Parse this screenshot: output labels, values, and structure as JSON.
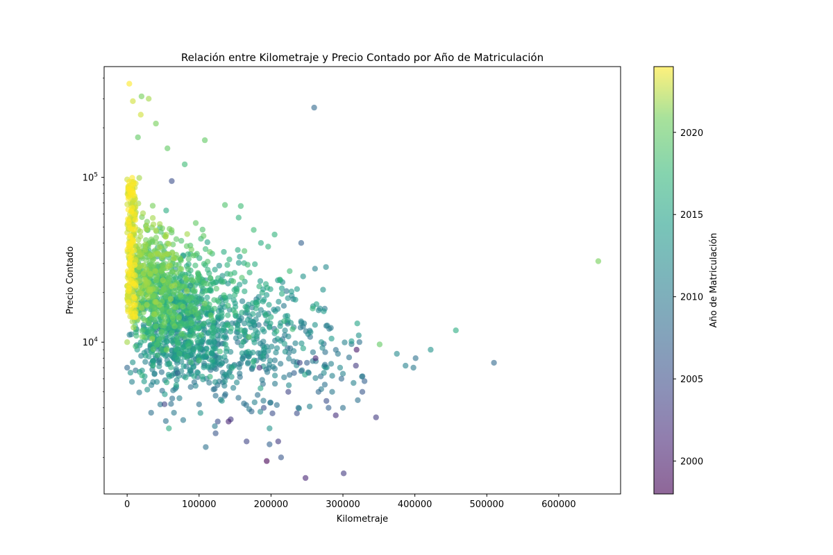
{
  "chart_data": {
    "type": "scatter",
    "title": "Relación entre Kilometraje y Precio Contado por Año de Matriculación",
    "xlabel": "Kilometraje",
    "ylabel": "Precio Contado",
    "yscale": "log",
    "xlim": [
      -32000,
      686000
    ],
    "ylim": [
      1200,
      470000
    ],
    "xticks": [
      0,
      100000,
      200000,
      300000,
      400000,
      500000,
      600000
    ],
    "yticks": [
      {
        "value": 10000,
        "base": "10",
        "exp": "4"
      },
      {
        "value": 100000,
        "base": "10",
        "exp": "5"
      }
    ],
    "grid": false,
    "colorbar": {
      "label": "Año de Matriculación",
      "colormap": "viridis",
      "alpha": 0.6,
      "min": 1998,
      "max": 2024,
      "ticks": [
        2000,
        2005,
        2010,
        2015,
        2020
      ]
    },
    "density_note_hidden": false,
    "points": [
      [
        655000,
        31000,
        2021
      ],
      [
        510000,
        7500,
        2008
      ],
      [
        457000,
        11800,
        2016
      ],
      [
        422000,
        9000,
        2013
      ],
      [
        401000,
        8000,
        2009
      ],
      [
        398000,
        7000,
        2010
      ],
      [
        387000,
        7200,
        2011
      ],
      [
        375000,
        8500,
        2012
      ],
      [
        351000,
        9700,
        2020
      ],
      [
        346000,
        3500,
        2003
      ],
      [
        330000,
        5800,
        2007
      ],
      [
        327000,
        5000,
        2006
      ],
      [
        322000,
        11000,
        2013
      ],
      [
        320000,
        13000,
        2015
      ],
      [
        319000,
        9000,
        2000
      ],
      [
        318000,
        7200,
        2003
      ],
      [
        301000,
        1600,
        2003
      ],
      [
        300000,
        4000,
        2009
      ],
      [
        298000,
        6000,
        2008
      ],
      [
        296000,
        7000,
        2012
      ],
      [
        293000,
        8500,
        2010
      ],
      [
        290000,
        3600,
        2002
      ],
      [
        285000,
        5000,
        2010
      ],
      [
        280000,
        4000,
        2007
      ],
      [
        277000,
        4400,
        2005
      ],
      [
        275000,
        7300,
        2009
      ],
      [
        270000,
        10000,
        2013
      ],
      [
        268000,
        16000,
        2012
      ],
      [
        266000,
        5000,
        2008
      ],
      [
        262000,
        8000,
        2001
      ],
      [
        260000,
        265000,
        2008
      ],
      [
        258000,
        16000,
        2017
      ],
      [
        255000,
        11500,
        2013
      ],
      [
        250000,
        7500,
        2007
      ],
      [
        248000,
        1500,
        2001
      ],
      [
        246000,
        13000,
        2011
      ],
      [
        242000,
        40000,
        2007
      ],
      [
        240000,
        7500,
        2004
      ],
      [
        238000,
        4000,
        2009
      ],
      [
        236000,
        3700,
        2005
      ],
      [
        232000,
        6500,
        2007
      ],
      [
        230000,
        12000,
        2018
      ],
      [
        226000,
        27000,
        2018
      ],
      [
        224000,
        5000,
        2004
      ],
      [
        214000,
        2000,
        2006
      ],
      [
        210000,
        2500,
        2003
      ],
      [
        205000,
        45000,
        2017
      ],
      [
        202000,
        3700,
        2005
      ],
      [
        198000,
        2400,
        2007
      ],
      [
        198000,
        3000,
        2013
      ],
      [
        196000,
        38000,
        2017
      ],
      [
        194000,
        1900,
        1998
      ],
      [
        190000,
        4000,
        2005
      ],
      [
        186000,
        40000,
        2016
      ],
      [
        184000,
        7000,
        2002
      ],
      [
        176000,
        48000,
        2018
      ],
      [
        173000,
        3800,
        2008
      ],
      [
        166000,
        2500,
        2004
      ],
      [
        158000,
        67000,
        2018
      ],
      [
        155000,
        57000,
        2017
      ],
      [
        144000,
        3400,
        2003
      ],
      [
        141000,
        3300,
        2001
      ],
      [
        136000,
        68000,
        2019
      ],
      [
        126000,
        3300,
        2005
      ],
      [
        123000,
        2800,
        2006
      ],
      [
        108000,
        168000,
        2020
      ],
      [
        88000,
        22000,
        2013
      ],
      [
        80000,
        120000,
        2018
      ],
      [
        70000,
        6500,
        2007
      ],
      [
        62000,
        95000,
        2005
      ],
      [
        58000,
        3000,
        2016
      ],
      [
        56000,
        150000,
        2020
      ],
      [
        52000,
        4200,
        2004
      ],
      [
        45000,
        7500,
        2010
      ],
      [
        40000,
        212000,
        2021
      ],
      [
        38000,
        6400,
        2011
      ],
      [
        30000,
        300000,
        2022
      ],
      [
        20000,
        310000,
        2021
      ],
      [
        19000,
        240000,
        2023
      ],
      [
        15000,
        175000,
        2020
      ],
      [
        3000,
        370000,
        2024
      ],
      [
        0,
        7000,
        2008
      ],
      [
        0,
        10000,
        2022
      ],
      [
        8000,
        290000,
        2023
      ]
    ]
  }
}
